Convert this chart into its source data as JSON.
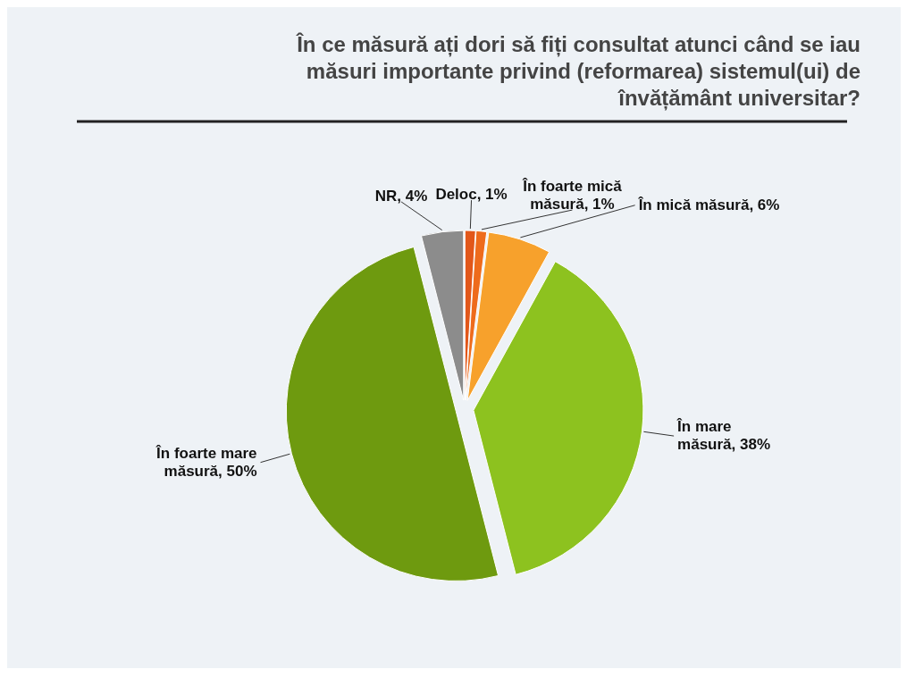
{
  "chart_data": {
    "type": "pie",
    "title": "În ce măsură ați dori să fiți consultat atunci când se iau măsuri importante privind (reformarea) sistemul(ui) de învățământ universitar?",
    "categories": [
      "Deloc",
      "În foarte mică măsură",
      "În mică măsură",
      "În mare măsură",
      "În foarte mare măsură",
      "NR"
    ],
    "values": [
      1,
      1,
      6,
      38,
      50,
      4
    ],
    "colors": [
      "#e2571a",
      "#ee6b1c",
      "#f7a12c",
      "#8dc21f",
      "#6e9a0f",
      "#8c8c8c"
    ],
    "value_labels": [
      "1%",
      "1%",
      "6%",
      "38%",
      "50%",
      "4%"
    ]
  }
}
